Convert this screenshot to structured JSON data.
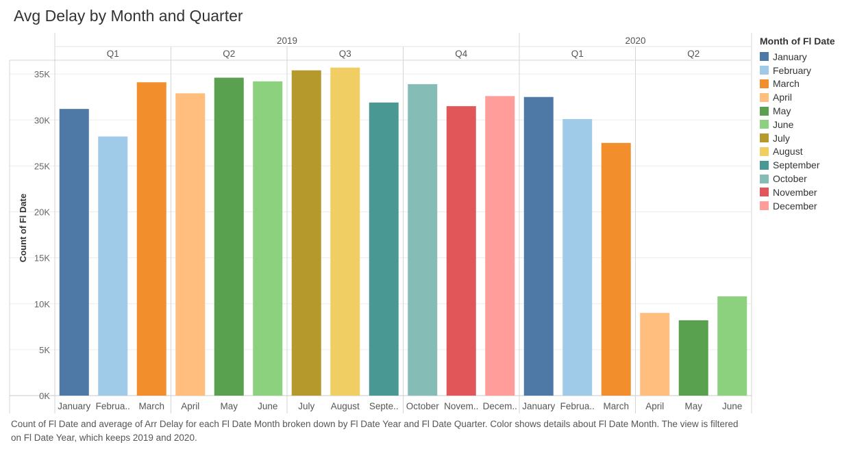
{
  "title": "Avg Delay by Month and Quarter",
  "colors": {
    "January": "#4e79a7",
    "February": "#a0cbe8",
    "March": "#f28e2b",
    "April": "#ffbe7d",
    "May": "#59a14f",
    "June": "#8cd17d",
    "July": "#b6992d",
    "August": "#f1ce63",
    "September": "#499894",
    "October": "#86bcb6",
    "November": "#e15759",
    "December": "#ff9d9a"
  },
  "legend": {
    "title": "Month of Fl Date",
    "items": [
      "January",
      "February",
      "March",
      "April",
      "May",
      "June",
      "July",
      "August",
      "September",
      "October",
      "November",
      "December"
    ]
  },
  "caption": "Count of Fl Date and average of Arr Delay for each Fl Date Month broken down by Fl Date Year and Fl Date Quarter.  Color shows details about Fl Date Month. The view is filtered on Fl Date Year, which keeps 2019 and 2020.",
  "chart_data": {
    "type": "bar",
    "ylabel": "Count of Fl Date",
    "ylim": [
      0,
      36500
    ],
    "yticks": [
      0,
      5000,
      10000,
      15000,
      20000,
      25000,
      30000,
      35000
    ],
    "ytick_labels": [
      "0K",
      "5K",
      "10K",
      "15K",
      "20K",
      "25K",
      "30K",
      "35K"
    ],
    "grid": true,
    "legend_position": "right",
    "years": [
      {
        "label": "2019",
        "quarters": [
          {
            "label": "Q1",
            "months": [
              {
                "name": "January",
                "label": "January",
                "value": 31200
              },
              {
                "name": "February",
                "label": "Februa..",
                "value": 28200
              },
              {
                "name": "March",
                "label": "March",
                "value": 34100
              }
            ]
          },
          {
            "label": "Q2",
            "months": [
              {
                "name": "April",
                "label": "April",
                "value": 32900
              },
              {
                "name": "May",
                "label": "May",
                "value": 34600
              },
              {
                "name": "June",
                "label": "June",
                "value": 34200
              }
            ]
          },
          {
            "label": "Q3",
            "months": [
              {
                "name": "July",
                "label": "July",
                "value": 35400
              },
              {
                "name": "August",
                "label": "August",
                "value": 35700
              },
              {
                "name": "September",
                "label": "Septe..",
                "value": 31900
              }
            ]
          },
          {
            "label": "Q4",
            "months": [
              {
                "name": "October",
                "label": "October",
                "value": 33900
              },
              {
                "name": "November",
                "label": "Novem..",
                "value": 31500
              },
              {
                "name": "December",
                "label": "Decem..",
                "value": 32600
              }
            ]
          }
        ]
      },
      {
        "label": "2020",
        "quarters": [
          {
            "label": "Q1",
            "months": [
              {
                "name": "January",
                "label": "January",
                "value": 32500
              },
              {
                "name": "February",
                "label": "Februa..",
                "value": 30100
              },
              {
                "name": "March",
                "label": "March",
                "value": 27500
              }
            ]
          },
          {
            "label": "Q2",
            "months": [
              {
                "name": "April",
                "label": "April",
                "value": 9000
              },
              {
                "name": "May",
                "label": "May",
                "value": 8200
              },
              {
                "name": "June",
                "label": "June",
                "value": 10800
              }
            ]
          }
        ]
      }
    ]
  }
}
